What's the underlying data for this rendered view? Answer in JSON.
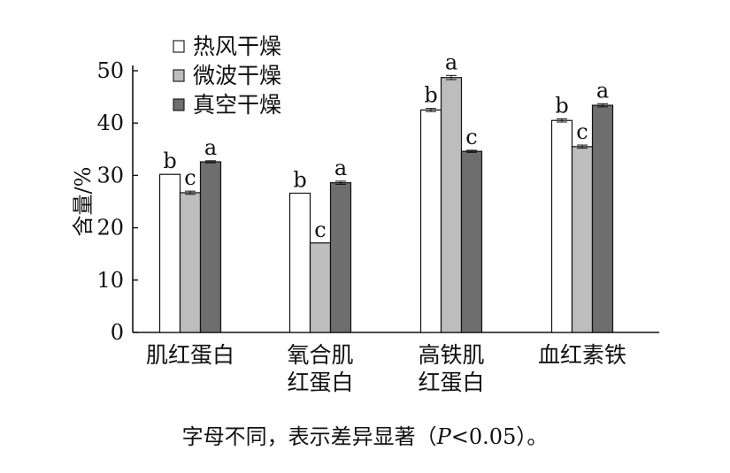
{
  "chart_data": {
    "type": "bar",
    "ylabel": "含量/%",
    "ylim": [
      0,
      50
    ],
    "yticks": [
      0,
      10,
      20,
      30,
      40,
      50
    ],
    "categories": [
      [
        "肌红蛋白"
      ],
      [
        "氧合肌",
        "红蛋白"
      ],
      [
        "高铁肌",
        "红蛋白"
      ],
      [
        "血红素铁"
      ]
    ],
    "series": [
      {
        "name": "热风干燥",
        "color": "#ffffff",
        "values": [
          30.2,
          26.6,
          42.5,
          40.5
        ],
        "errors": [
          0,
          0,
          0.3,
          0.3
        ],
        "letters": [
          "b",
          "b",
          "b",
          "b"
        ]
      },
      {
        "name": "微波干燥",
        "color": "#bdbdbd",
        "values": [
          26.7,
          17.1,
          48.7,
          35.5
        ],
        "errors": [
          0.3,
          0,
          0.4,
          0.3
        ],
        "letters": [
          "c",
          "c",
          "a",
          "c"
        ]
      },
      {
        "name": "真空干燥",
        "color": "#6e6e6e",
        "values": [
          32.6,
          28.6,
          34.6,
          43.4
        ],
        "errors": [
          0.2,
          0.3,
          0.2,
          0.3
        ],
        "letters": [
          "a",
          "a",
          "c",
          "a"
        ]
      }
    ],
    "legend_position": "top-left",
    "grid": false
  },
  "caption": {
    "before": "字母不同，表示差异显著（",
    "italic": "P",
    "after": "<0.05）。"
  }
}
